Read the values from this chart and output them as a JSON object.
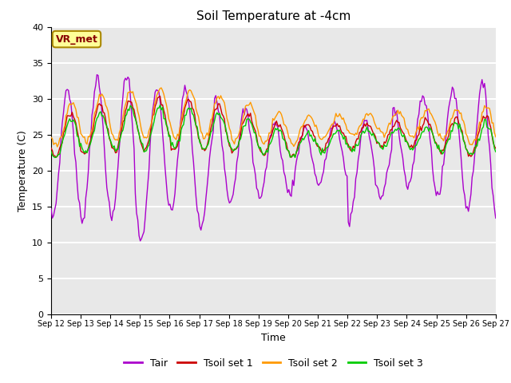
{
  "title": "Soil Temperature at -4cm",
  "xlabel": "Time",
  "ylabel": "Temperature (C)",
  "ylim": [
    0,
    40
  ],
  "yticks": [
    0,
    5,
    10,
    15,
    20,
    25,
    30,
    35,
    40
  ],
  "xtick_labels": [
    "Sep 12",
    "Sep 13",
    "Sep 14",
    "Sep 15",
    "Sep 16",
    "Sep 17",
    "Sep 18",
    "Sep 19",
    "Sep 20",
    "Sep 21",
    "Sep 22",
    "Sep 23",
    "Sep 24",
    "Sep 25",
    "Sep 26",
    "Sep 27"
  ],
  "colors": {
    "Tair": "#aa00cc",
    "Tsoil1": "#cc0000",
    "Tsoil2": "#ff9900",
    "Tsoil3": "#00cc00"
  },
  "legend_label": "VR_met",
  "legend_bg": "#ffff99",
  "legend_border": "#aa8800",
  "plot_bg": "#e8e8e8",
  "fig_bg": "#ffffff",
  "grid_color": "white",
  "series_labels": [
    "Tair",
    "Tsoil set 1",
    "Tsoil set 2",
    "Tsoil set 3"
  ]
}
